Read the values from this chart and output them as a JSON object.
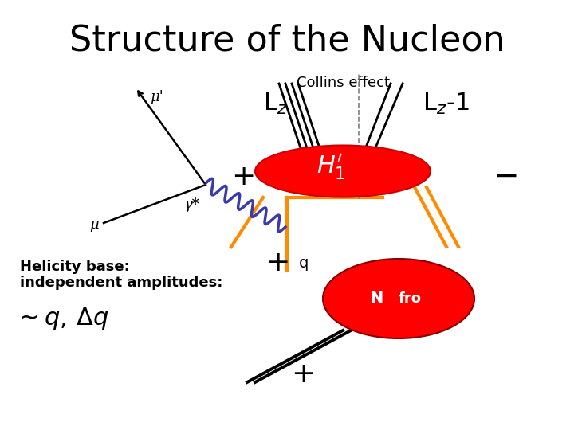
{
  "title": "Structure of the Nucleon",
  "subtitle": "Collins effect",
  "bg_color": "#ffffff",
  "title_fontsize": 32,
  "subtitle_fontsize": 13,
  "fig_width": 7.2,
  "fig_height": 5.4,
  "dpi": 100,
  "disk_color": "#ff0000",
  "disk_edge": "#cc0000",
  "nucleon_color": "#ff0000",
  "orange_color": "#ff8c00",
  "blue_wavy_color": "#3a3aaa",
  "label_Lz": "L$_z$",
  "label_Lz1": "L$_z$-1",
  "label_H1": "$H_1^{\\prime}$",
  "label_plus": "+",
  "label_minus": "−",
  "label_helicity": "Helicity base:",
  "label_independent": "independent amplitudes:",
  "label_mu_prime": "μ'",
  "label_mu": "μ",
  "label_gamma": "γ*",
  "label_q": "q",
  "label_N": "N",
  "label_fro": "fro"
}
